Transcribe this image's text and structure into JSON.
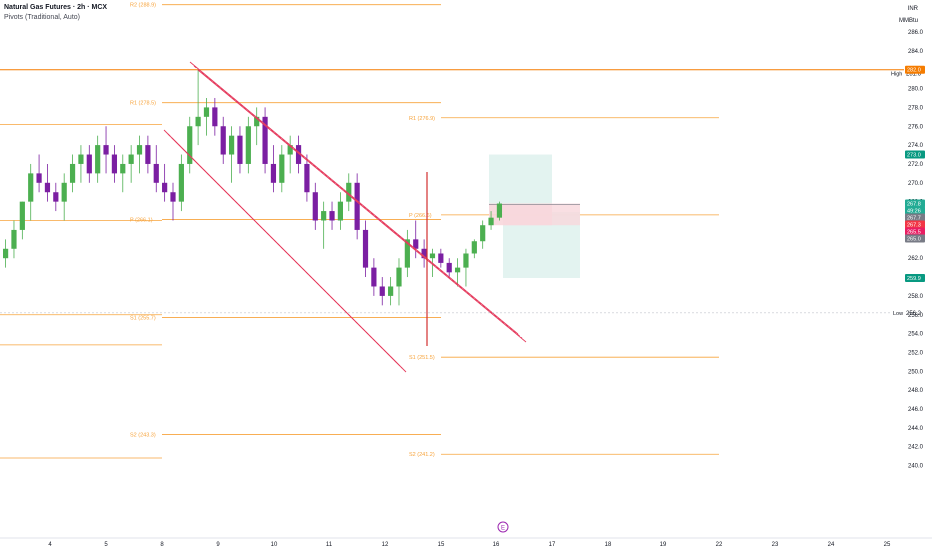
{
  "header": {
    "title": "Natural Gas Futures · 2h · MCX",
    "indicator": "Pivots (Traditional, Auto)"
  },
  "currency": {
    "code": "INR",
    "unit": "MMBtu"
  },
  "colors": {
    "up": "#4caf50",
    "down": "#7b1fa2",
    "pivot": "#f7a33b",
    "channel": "#e53d5f",
    "vline": "#d32f2f",
    "target_zone": "#e0f2ee",
    "stop_zone": "#f8d7dc",
    "high_line": "#f57c00",
    "axis_text": "#131722"
  },
  "price_axis": {
    "ticks": [
      "286.0",
      "284.0",
      "282.0",
      "280.0",
      "278.0",
      "276.0",
      "274.0",
      "272.0",
      "270.0",
      "268.0",
      "266.0",
      "264.0",
      "262.0",
      "260.0",
      "258.0",
      "256.0",
      "254.0",
      "252.0",
      "250.0",
      "248.0",
      "246.0",
      "244.0",
      "242.0",
      "240.0"
    ]
  },
  "time_axis": {
    "ticks": [
      "4",
      "5",
      "8",
      "9",
      "10",
      "11",
      "12",
      "15",
      "16",
      "17",
      "18",
      "19",
      "22",
      "23",
      "24",
      "25"
    ]
  },
  "pivot_labels": [
    {
      "text": "R2 (288.9)",
      "price": 288.9
    },
    {
      "text": "R1 (278.5)",
      "price": 278.5
    },
    {
      "text": "R1 (276.9)",
      "price": 276.9
    },
    {
      "text": "P (266.1)",
      "price": 266.1
    },
    {
      "text": "P (266.6)",
      "price": 266.6
    },
    {
      "text": "S1 (255.7)",
      "price": 255.7
    },
    {
      "text": "S1 (251.5)",
      "price": 251.5
    },
    {
      "text": "S2 (243.3)",
      "price": 243.3
    },
    {
      "text": "S2 (241.2)",
      "price": 241.2
    }
  ],
  "markers": {
    "high": {
      "label": "High",
      "value": "281.6",
      "price": 281.6
    },
    "low": {
      "label": "Low",
      "value": "256.2",
      "price": 256.2
    }
  },
  "price_tags": [
    {
      "text": "282.0",
      "color": "#f57c00",
      "price": 282.0
    },
    {
      "text": "273.0",
      "color": "#089981",
      "price": 273.0
    },
    {
      "text": "267.8",
      "color": "#22ab94",
      "price": 267.8
    },
    {
      "text": "49:26",
      "color": "#22ab94",
      "price": 267.8
    },
    {
      "text": "267.7",
      "color": "#787b86",
      "price": 267.7
    },
    {
      "text": "267.3",
      "color": "#f23645",
      "price": 267.3
    },
    {
      "text": "265.5",
      "color": "#e91e63",
      "price": 265.5
    },
    {
      "text": "265.0",
      "color": "#787b86",
      "price": 265.0
    },
    {
      "text": "259.9",
      "color": "#089981",
      "price": 259.9
    }
  ],
  "event_badge": "E",
  "candles": [
    [
      262,
      264,
      261,
      263
    ],
    [
      263,
      266,
      262,
      265
    ],
    [
      265,
      268,
      264,
      268
    ],
    [
      268,
      272,
      266,
      271
    ],
    [
      271,
      273,
      269,
      270
    ],
    [
      270,
      272,
      268,
      269
    ],
    [
      269,
      270,
      267,
      268
    ],
    [
      268,
      271,
      266,
      270
    ],
    [
      270,
      273,
      269,
      272
    ],
    [
      272,
      274,
      270,
      273
    ],
    [
      273,
      274,
      270,
      271
    ],
    [
      271,
      275,
      270,
      274
    ],
    [
      274,
      276,
      271,
      273
    ],
    [
      273,
      274,
      270,
      271
    ],
    [
      271,
      273,
      269,
      272
    ],
    [
      272,
      274,
      270,
      273
    ],
    [
      273,
      275,
      271,
      274
    ],
    [
      274,
      275,
      271,
      272
    ],
    [
      272,
      274,
      269,
      270
    ],
    [
      270,
      272,
      268,
      269
    ],
    [
      269,
      270,
      266,
      268
    ],
    [
      268,
      273,
      267,
      272
    ],
    [
      272,
      277,
      271,
      276
    ],
    [
      276,
      282,
      274,
      277
    ],
    [
      277,
      279,
      275,
      278
    ],
    [
      278,
      279,
      275,
      276
    ],
    [
      276,
      277,
      272,
      273
    ],
    [
      273,
      276,
      270,
      275
    ],
    [
      275,
      276,
      271,
      272
    ],
    [
      272,
      277,
      271,
      276
    ],
    [
      276,
      278,
      274,
      277
    ],
    [
      277,
      278,
      271,
      272
    ],
    [
      272,
      274,
      269,
      270
    ],
    [
      270,
      274,
      269,
      273
    ],
    [
      273,
      275,
      271,
      274
    ],
    [
      274,
      275,
      271,
      272
    ],
    [
      272,
      273,
      268,
      269
    ],
    [
      269,
      270,
      265,
      266
    ],
    [
      266,
      268,
      263,
      267
    ],
    [
      267,
      268,
      265,
      266
    ],
    [
      266,
      269,
      265,
      268
    ],
    [
      268,
      271,
      267,
      270
    ],
    [
      270,
      271,
      264,
      265
    ],
    [
      265,
      266,
      260,
      261
    ],
    [
      261,
      262,
      258,
      259
    ],
    [
      259,
      260,
      257,
      258
    ],
    [
      258,
      260,
      257,
      259
    ],
    [
      259,
      262,
      257,
      261
    ],
    [
      261,
      265,
      260,
      264
    ],
    [
      264,
      266,
      262,
      263
    ],
    [
      263,
      264,
      261,
      262
    ],
    [
      262,
      263,
      260,
      262.5
    ],
    [
      262.5,
      263,
      261,
      261.5
    ],
    [
      261.5,
      262,
      260,
      260.5
    ],
    [
      260.5,
      262,
      259,
      261
    ],
    [
      261,
      263,
      259,
      262.5
    ],
    [
      262.5,
      264,
      262,
      263.8
    ],
    [
      263.8,
      266,
      263,
      265.5
    ],
    [
      265.5,
      267,
      265,
      266.3
    ],
    [
      266.3,
      268,
      266,
      267.8
    ]
  ],
  "drawings": {
    "channel_upper": [
      [
        266.7,
        284.7
      ],
      [
        284.2,
        284.7
      ],
      [
        331.4,
        259.6
      ]
    ],
    "channel_lower": [
      [
        266.7,
        274.7
      ],
      [
        297.6,
        256.2
      ]
    ],
    "vertical_line": {
      "index": 44,
      "top": 273.0,
      "bottom": 257.0
    },
    "position": {
      "entry": 266.9,
      "target": 273.0,
      "stop": 267.8,
      "stop_low": 265.5,
      "target_low": 259.9
    }
  }
}
